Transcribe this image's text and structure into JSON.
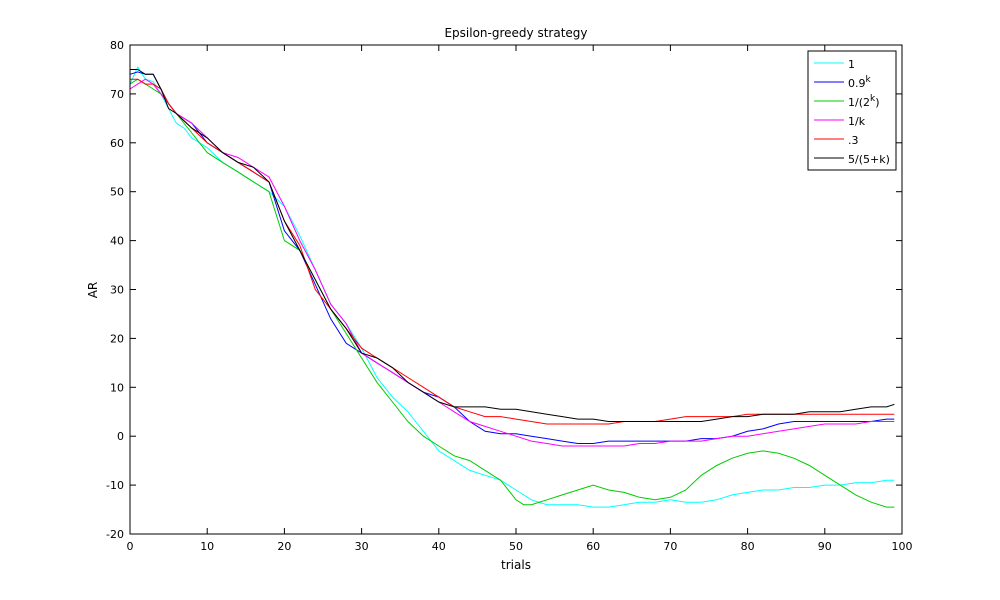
{
  "chart_data": {
    "type": "line",
    "title": "Epsilon-greedy strategy",
    "xlabel": "trials",
    "ylabel": "AR",
    "xlim": [
      0,
      100
    ],
    "ylim": [
      -20,
      80
    ],
    "xticks": [
      0,
      10,
      20,
      30,
      40,
      50,
      60,
      70,
      80,
      90,
      100
    ],
    "yticks": [
      -20,
      -10,
      0,
      10,
      20,
      30,
      40,
      50,
      60,
      70,
      80
    ],
    "grid": false,
    "legend_position": "top-right",
    "series": [
      {
        "name": "1",
        "color": "#00ffff",
        "x": [
          0,
          1,
          2,
          3,
          4,
          5,
          6,
          7,
          8,
          9,
          10,
          12,
          14,
          16,
          18,
          20,
          22,
          24,
          26,
          28,
          30,
          32,
          34,
          36,
          37,
          38,
          39,
          40,
          42,
          44,
          46,
          48,
          50,
          52,
          54,
          56,
          58,
          60,
          62,
          64,
          66,
          68,
          70,
          72,
          74,
          76,
          78,
          80,
          82,
          84,
          86,
          88,
          90,
          92,
          94,
          96,
          98,
          99
        ],
        "y": [
          72,
          75.5,
          73,
          72.5,
          70,
          67,
          64,
          63,
          61,
          60,
          59,
          56,
          54,
          52,
          50,
          47,
          41,
          34,
          27,
          23,
          18,
          12,
          8,
          5,
          3,
          1,
          -1,
          -3,
          -5,
          -7,
          -8,
          -9,
          -11,
          -13,
          -14,
          -14,
          -14,
          -14.5,
          -14.5,
          -14,
          -13.5,
          -13.5,
          -13,
          -13.5,
          -13.5,
          -13,
          -12,
          -11.5,
          -11,
          -11,
          -10.5,
          -10.5,
          -10,
          -10,
          -9.5,
          -9.5,
          -9,
          -9
        ]
      },
      {
        "name": "0.9^k",
        "color": "#0000ff",
        "x": [
          0,
          1,
          2,
          3,
          4,
          5,
          6,
          8,
          10,
          12,
          14,
          16,
          18,
          20,
          22,
          24,
          26,
          28,
          30,
          32,
          34,
          36,
          38,
          40,
          42,
          44,
          46,
          48,
          50,
          52,
          54,
          56,
          58,
          60,
          62,
          64,
          66,
          68,
          70,
          72,
          74,
          76,
          78,
          80,
          82,
          84,
          86,
          88,
          90,
          92,
          94,
          96,
          98,
          99
        ],
        "y": [
          74,
          74.5,
          74,
          74,
          71,
          68,
          66,
          64,
          60,
          58,
          56,
          54,
          52,
          42,
          38,
          31,
          24,
          19,
          17,
          15,
          13,
          11,
          9,
          8,
          6,
          3,
          1,
          0.5,
          0.5,
          0,
          -0.5,
          -1,
          -1.5,
          -1.5,
          -1,
          -1,
          -1,
          -1,
          -1,
          -1,
          -0.5,
          -0.5,
          0,
          1,
          1.5,
          2.5,
          3,
          3,
          3,
          3,
          3,
          3,
          3.5,
          3.5
        ]
      },
      {
        "name": "1/(2^k)",
        "color": "#00cc00",
        "x": [
          0,
          1,
          2,
          3,
          4,
          5,
          6,
          8,
          10,
          12,
          14,
          16,
          18,
          20,
          22,
          24,
          26,
          28,
          30,
          32,
          34,
          36,
          38,
          40,
          42,
          44,
          46,
          48,
          50,
          51,
          52,
          54,
          56,
          58,
          60,
          62,
          64,
          66,
          68,
          70,
          72,
          74,
          76,
          78,
          80,
          82,
          84,
          86,
          88,
          90,
          92,
          94,
          96,
          98,
          99
        ],
        "y": [
          72,
          73,
          72,
          71,
          70,
          68,
          66,
          62,
          58,
          56,
          54,
          52,
          50,
          40,
          38,
          32,
          26,
          21,
          16,
          11,
          7,
          3,
          0,
          -2,
          -4,
          -5,
          -7,
          -9,
          -13,
          -14,
          -14,
          -13,
          -12,
          -11,
          -10,
          -11,
          -11.5,
          -12.5,
          -13,
          -12.5,
          -11,
          -8,
          -6,
          -4.5,
          -3.5,
          -3,
          -3.5,
          -4.5,
          -6,
          -8,
          -10,
          -12,
          -13.5,
          -14.5,
          -14.5
        ]
      },
      {
        "name": "1/k",
        "color": "#ff00ff",
        "x": [
          0,
          1,
          2,
          3,
          4,
          5,
          6,
          8,
          10,
          12,
          14,
          16,
          18,
          20,
          22,
          24,
          26,
          28,
          30,
          32,
          34,
          36,
          38,
          40,
          42,
          44,
          46,
          48,
          50,
          52,
          54,
          56,
          58,
          60,
          62,
          64,
          66,
          68,
          70,
          72,
          74,
          76,
          78,
          80,
          82,
          84,
          86,
          88,
          90,
          92,
          94,
          96,
          98,
          99
        ],
        "y": [
          71,
          72,
          73,
          72,
          70,
          68,
          66,
          64,
          61,
          58,
          57,
          55,
          53,
          47,
          40,
          34,
          27,
          23,
          17,
          15,
          13,
          11,
          9,
          7,
          5,
          3,
          2,
          1,
          0,
          -1,
          -1.5,
          -2,
          -2,
          -2,
          -2,
          -2,
          -1.5,
          -1.5,
          -1,
          -1,
          -1,
          -0.5,
          0,
          0,
          0.5,
          1,
          1.5,
          2,
          2.5,
          2.5,
          2.5,
          3,
          3,
          3
        ]
      },
      {
        "name": ".3",
        "color": "#ff0000",
        "x": [
          0,
          1,
          2,
          3,
          4,
          5,
          6,
          8,
          10,
          12,
          14,
          16,
          18,
          20,
          22,
          24,
          26,
          28,
          30,
          32,
          34,
          36,
          38,
          40,
          42,
          44,
          46,
          48,
          50,
          52,
          54,
          56,
          58,
          60,
          62,
          64,
          66,
          68,
          70,
          72,
          74,
          76,
          78,
          80,
          82,
          84,
          86,
          88,
          90,
          92,
          94,
          96,
          98,
          99
        ],
        "y": [
          73,
          73,
          72,
          72,
          71,
          68,
          66,
          63,
          60,
          58,
          56,
          54,
          52,
          44,
          39,
          30,
          26,
          22,
          18,
          16,
          14,
          12,
          10,
          8,
          6,
          5,
          4,
          4,
          3.5,
          3,
          2.5,
          2.5,
          2.5,
          2.5,
          2.5,
          3,
          3,
          3,
          3.5,
          4,
          4,
          4,
          4,
          4.5,
          4.5,
          4.5,
          4.5,
          4.5,
          4.5,
          4.5,
          4.5,
          4.5,
          4.5,
          4.5
        ]
      },
      {
        "name": "5/(5+k)",
        "color": "#000000",
        "x": [
          0,
          1,
          2,
          3,
          4,
          5,
          6,
          8,
          10,
          12,
          14,
          16,
          18,
          20,
          22,
          24,
          26,
          28,
          30,
          32,
          34,
          36,
          38,
          40,
          42,
          44,
          46,
          48,
          50,
          52,
          54,
          56,
          58,
          60,
          62,
          64,
          66,
          68,
          70,
          72,
          74,
          76,
          78,
          80,
          82,
          84,
          86,
          88,
          90,
          92,
          94,
          96,
          98,
          99
        ],
        "y": [
          75,
          75,
          74,
          74,
          71,
          67,
          66,
          63,
          61,
          58,
          56,
          55,
          52,
          44,
          38,
          32,
          26,
          22,
          17,
          16,
          14,
          11,
          9,
          7,
          6,
          6,
          6,
          5.5,
          5.5,
          5,
          4.5,
          4,
          3.5,
          3.5,
          3,
          3,
          3,
          3,
          3,
          3,
          3,
          3.5,
          4,
          4,
          4.5,
          4.5,
          4.5,
          5,
          5,
          5,
          5.5,
          6,
          6,
          6.5
        ]
      }
    ]
  }
}
